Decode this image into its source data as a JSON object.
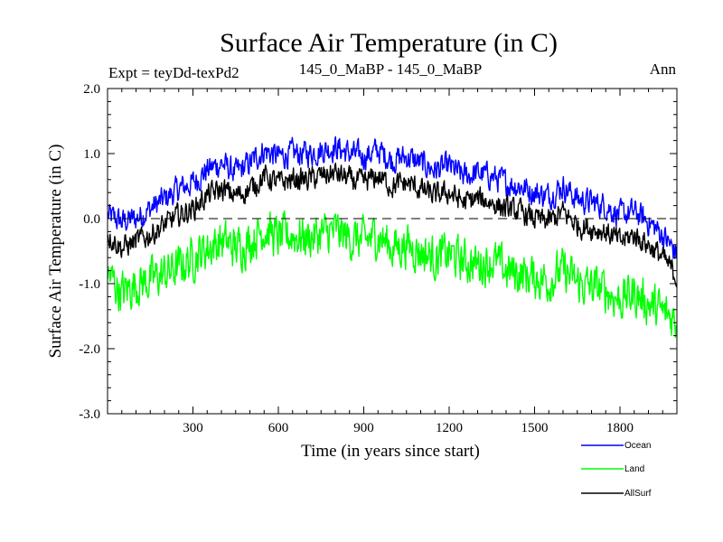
{
  "header": {
    "title": "Surface Air Temperature (in C)",
    "expt": "Expt = teyDd-texPd2",
    "comparison": "145_0_MaBP - 145_0_MaBP",
    "season": "Ann"
  },
  "colors": {
    "ocean": "#0000ff",
    "land": "#00ff00",
    "allsurf": "#000000",
    "zero_line": "#000000"
  },
  "chart_data": {
    "type": "line",
    "title": "Surface Air Temperature (in C)",
    "xlabel": "Time (in years since start)",
    "ylabel": "Surface Air Temperature (in C)",
    "xlim": [
      0,
      2000
    ],
    "ylim": [
      -3.0,
      2.0
    ],
    "x_ticks": [
      300,
      600,
      900,
      1200,
      1500,
      1800
    ],
    "x_tick_labels": [
      "300",
      "600",
      "900",
      "1200",
      "1500",
      "1800"
    ],
    "y_ticks": [
      -3.0,
      -2.0,
      -1.0,
      0.0,
      1.0,
      2.0
    ],
    "y_tick_labels": [
      "-3.0",
      "-2.0",
      "-1.0",
      "0.0",
      "1.0",
      "2.0"
    ],
    "reference_line": 0.0,
    "legend_position": "bottom-right",
    "x": [
      0,
      50,
      100,
      150,
      200,
      250,
      300,
      350,
      400,
      450,
      500,
      550,
      600,
      650,
      700,
      750,
      800,
      850,
      900,
      950,
      1000,
      1050,
      1100,
      1150,
      1200,
      1250,
      1300,
      1350,
      1400,
      1450,
      1500,
      1550,
      1600,
      1650,
      1700,
      1750,
      1800,
      1850,
      1900,
      1950,
      2000
    ],
    "series": [
      {
        "name": "Ocean",
        "values": [
          0.05,
          -0.05,
          0.0,
          0.15,
          0.3,
          0.45,
          0.55,
          0.75,
          0.85,
          0.7,
          0.85,
          1.05,
          0.95,
          1.0,
          1.0,
          1.05,
          1.1,
          1.0,
          0.95,
          1.05,
          0.9,
          0.95,
          0.85,
          0.75,
          0.8,
          0.65,
          0.7,
          0.65,
          0.55,
          0.5,
          0.4,
          0.35,
          0.5,
          0.3,
          0.25,
          0.2,
          0.05,
          0.1,
          -0.05,
          -0.25,
          -0.55
        ]
      },
      {
        "name": "Land",
        "values": [
          -0.85,
          -1.15,
          -1.0,
          -0.95,
          -0.85,
          -0.75,
          -0.6,
          -0.45,
          -0.35,
          -0.45,
          -0.35,
          -0.15,
          -0.3,
          -0.25,
          -0.3,
          -0.25,
          -0.2,
          -0.3,
          -0.35,
          -0.25,
          -0.45,
          -0.4,
          -0.5,
          -0.6,
          -0.55,
          -0.65,
          -0.7,
          -0.65,
          -0.8,
          -0.85,
          -0.9,
          -0.95,
          -0.8,
          -1.0,
          -1.05,
          -1.1,
          -1.25,
          -1.15,
          -1.3,
          -1.45,
          -1.55
        ]
      },
      {
        "name": "AllSurf",
        "values": [
          -0.25,
          -0.45,
          -0.35,
          -0.25,
          -0.1,
          0.05,
          0.15,
          0.35,
          0.45,
          0.35,
          0.45,
          0.65,
          0.55,
          0.6,
          0.6,
          0.65,
          0.7,
          0.6,
          0.55,
          0.65,
          0.5,
          0.55,
          0.45,
          0.35,
          0.4,
          0.25,
          0.3,
          0.25,
          0.15,
          0.1,
          0.0,
          -0.05,
          0.1,
          -0.1,
          -0.15,
          -0.2,
          -0.35,
          -0.25,
          -0.4,
          -0.6,
          -0.9
        ]
      }
    ]
  },
  "legend": {
    "items": [
      {
        "label": "Ocean"
      },
      {
        "label": "Land"
      },
      {
        "label": "AllSurf"
      }
    ]
  }
}
